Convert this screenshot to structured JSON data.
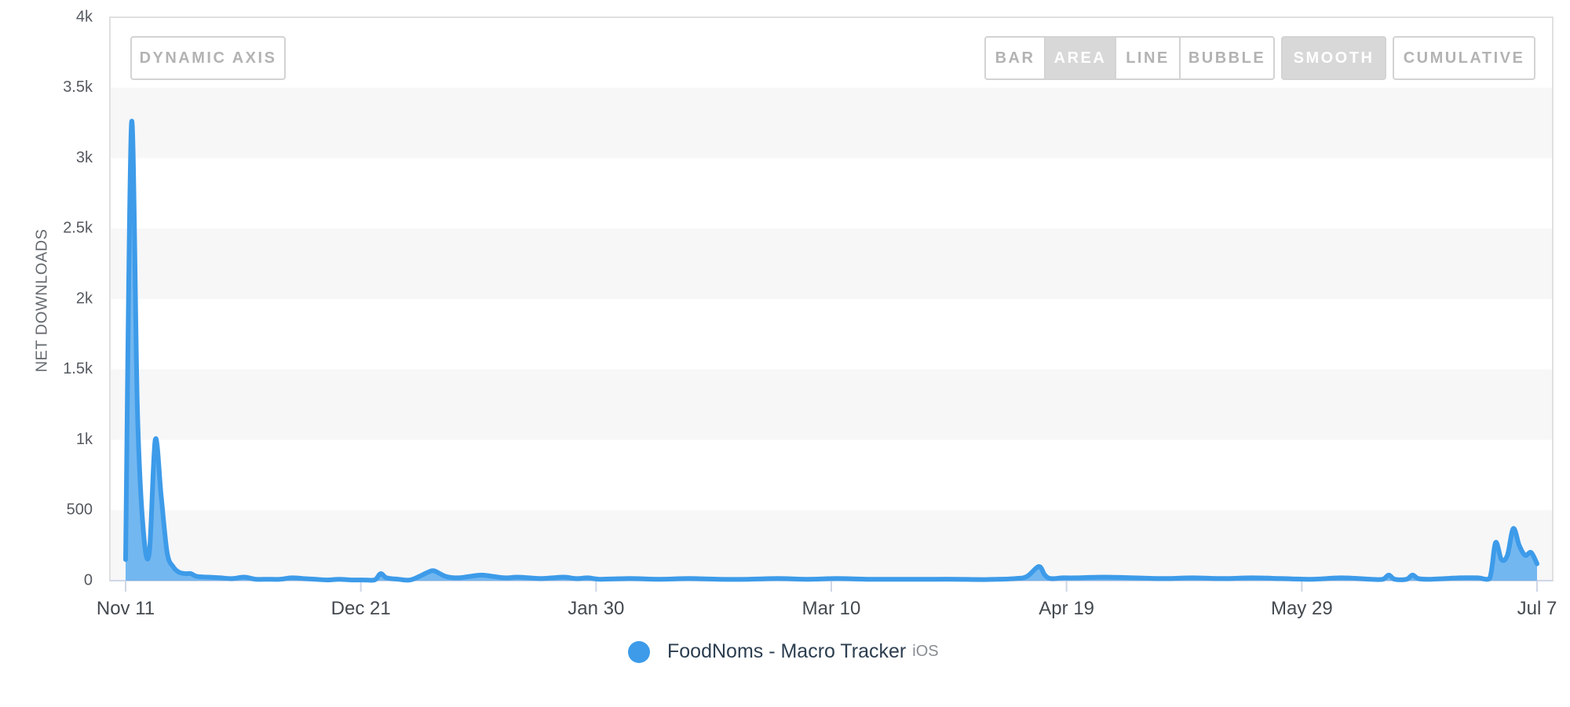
{
  "controls": {
    "dynamic_axis": "DYNAMIC AXIS",
    "type_buttons": [
      {
        "label": "BAR",
        "active": false
      },
      {
        "label": "AREA",
        "active": true
      },
      {
        "label": "LINE",
        "active": false
      },
      {
        "label": "BUBBLE",
        "active": false
      }
    ],
    "smooth": {
      "label": "SMOOTH",
      "active": true
    },
    "cumulative": {
      "label": "CUMULATIVE",
      "active": false
    }
  },
  "legend": {
    "name": "FoodNoms - Macro Tracker",
    "platform": "iOS"
  },
  "colors": {
    "series": "#3d9be9",
    "series_fill": "#6bb3ef",
    "band": "#f7f7f8",
    "axis": "#cfd6e6"
  },
  "chart_data": {
    "type": "area",
    "smooth": true,
    "ylabel": "NET DOWNLOADS",
    "xlabel": "",
    "ylim": [
      0,
      4000
    ],
    "y_ticks": [
      "0",
      "500",
      "1k",
      "1.5k",
      "2k",
      "2.5k",
      "3k",
      "3.5k",
      "4k"
    ],
    "x_tick_labels": [
      "Nov 11",
      "Dec 21",
      "Jan 30",
      "Mar 10",
      "Apr 19",
      "May 29",
      "Jul 7"
    ],
    "x_range_days": [
      0,
      238
    ],
    "grid": "alternating horizontal bands",
    "series": [
      {
        "name": "FoodNoms - Macro Tracker",
        "x": [
          0,
          1,
          2,
          3,
          4,
          5,
          6,
          7,
          8,
          9,
          10,
          11,
          12,
          14,
          16,
          18,
          20,
          22,
          24,
          26,
          28,
          30,
          32,
          34,
          36,
          38,
          40,
          42,
          43,
          44,
          46,
          48,
          50,
          51,
          52,
          54,
          56,
          58,
          60,
          62,
          64,
          66,
          68,
          70,
          72,
          74,
          76,
          78,
          80,
          85,
          90,
          95,
          100,
          105,
          110,
          115,
          120,
          125,
          130,
          135,
          140,
          145,
          150,
          152,
          154,
          155,
          156,
          158,
          160,
          165,
          170,
          175,
          180,
          185,
          190,
          195,
          200,
          205,
          210,
          212,
          213,
          214,
          216,
          217,
          218,
          220,
          225,
          228,
          230,
          231,
          232,
          233,
          234,
          235,
          236,
          237,
          238
        ],
        "y": [
          150,
          3250,
          1200,
          350,
          200,
          1000,
          600,
          200,
          100,
          60,
          50,
          50,
          30,
          25,
          20,
          15,
          25,
          10,
          10,
          10,
          20,
          15,
          10,
          5,
          10,
          5,
          5,
          5,
          50,
          20,
          10,
          5,
          40,
          60,
          70,
          30,
          20,
          30,
          40,
          30,
          20,
          25,
          20,
          15,
          20,
          25,
          15,
          20,
          10,
          15,
          10,
          15,
          10,
          10,
          15,
          10,
          15,
          10,
          10,
          10,
          10,
          8,
          15,
          30,
          100,
          40,
          15,
          20,
          20,
          25,
          20,
          15,
          20,
          15,
          20,
          15,
          10,
          20,
          10,
          10,
          40,
          10,
          10,
          40,
          15,
          10,
          20,
          20,
          15,
          270,
          150,
          180,
          370,
          250,
          180,
          200,
          120
        ]
      }
    ]
  }
}
